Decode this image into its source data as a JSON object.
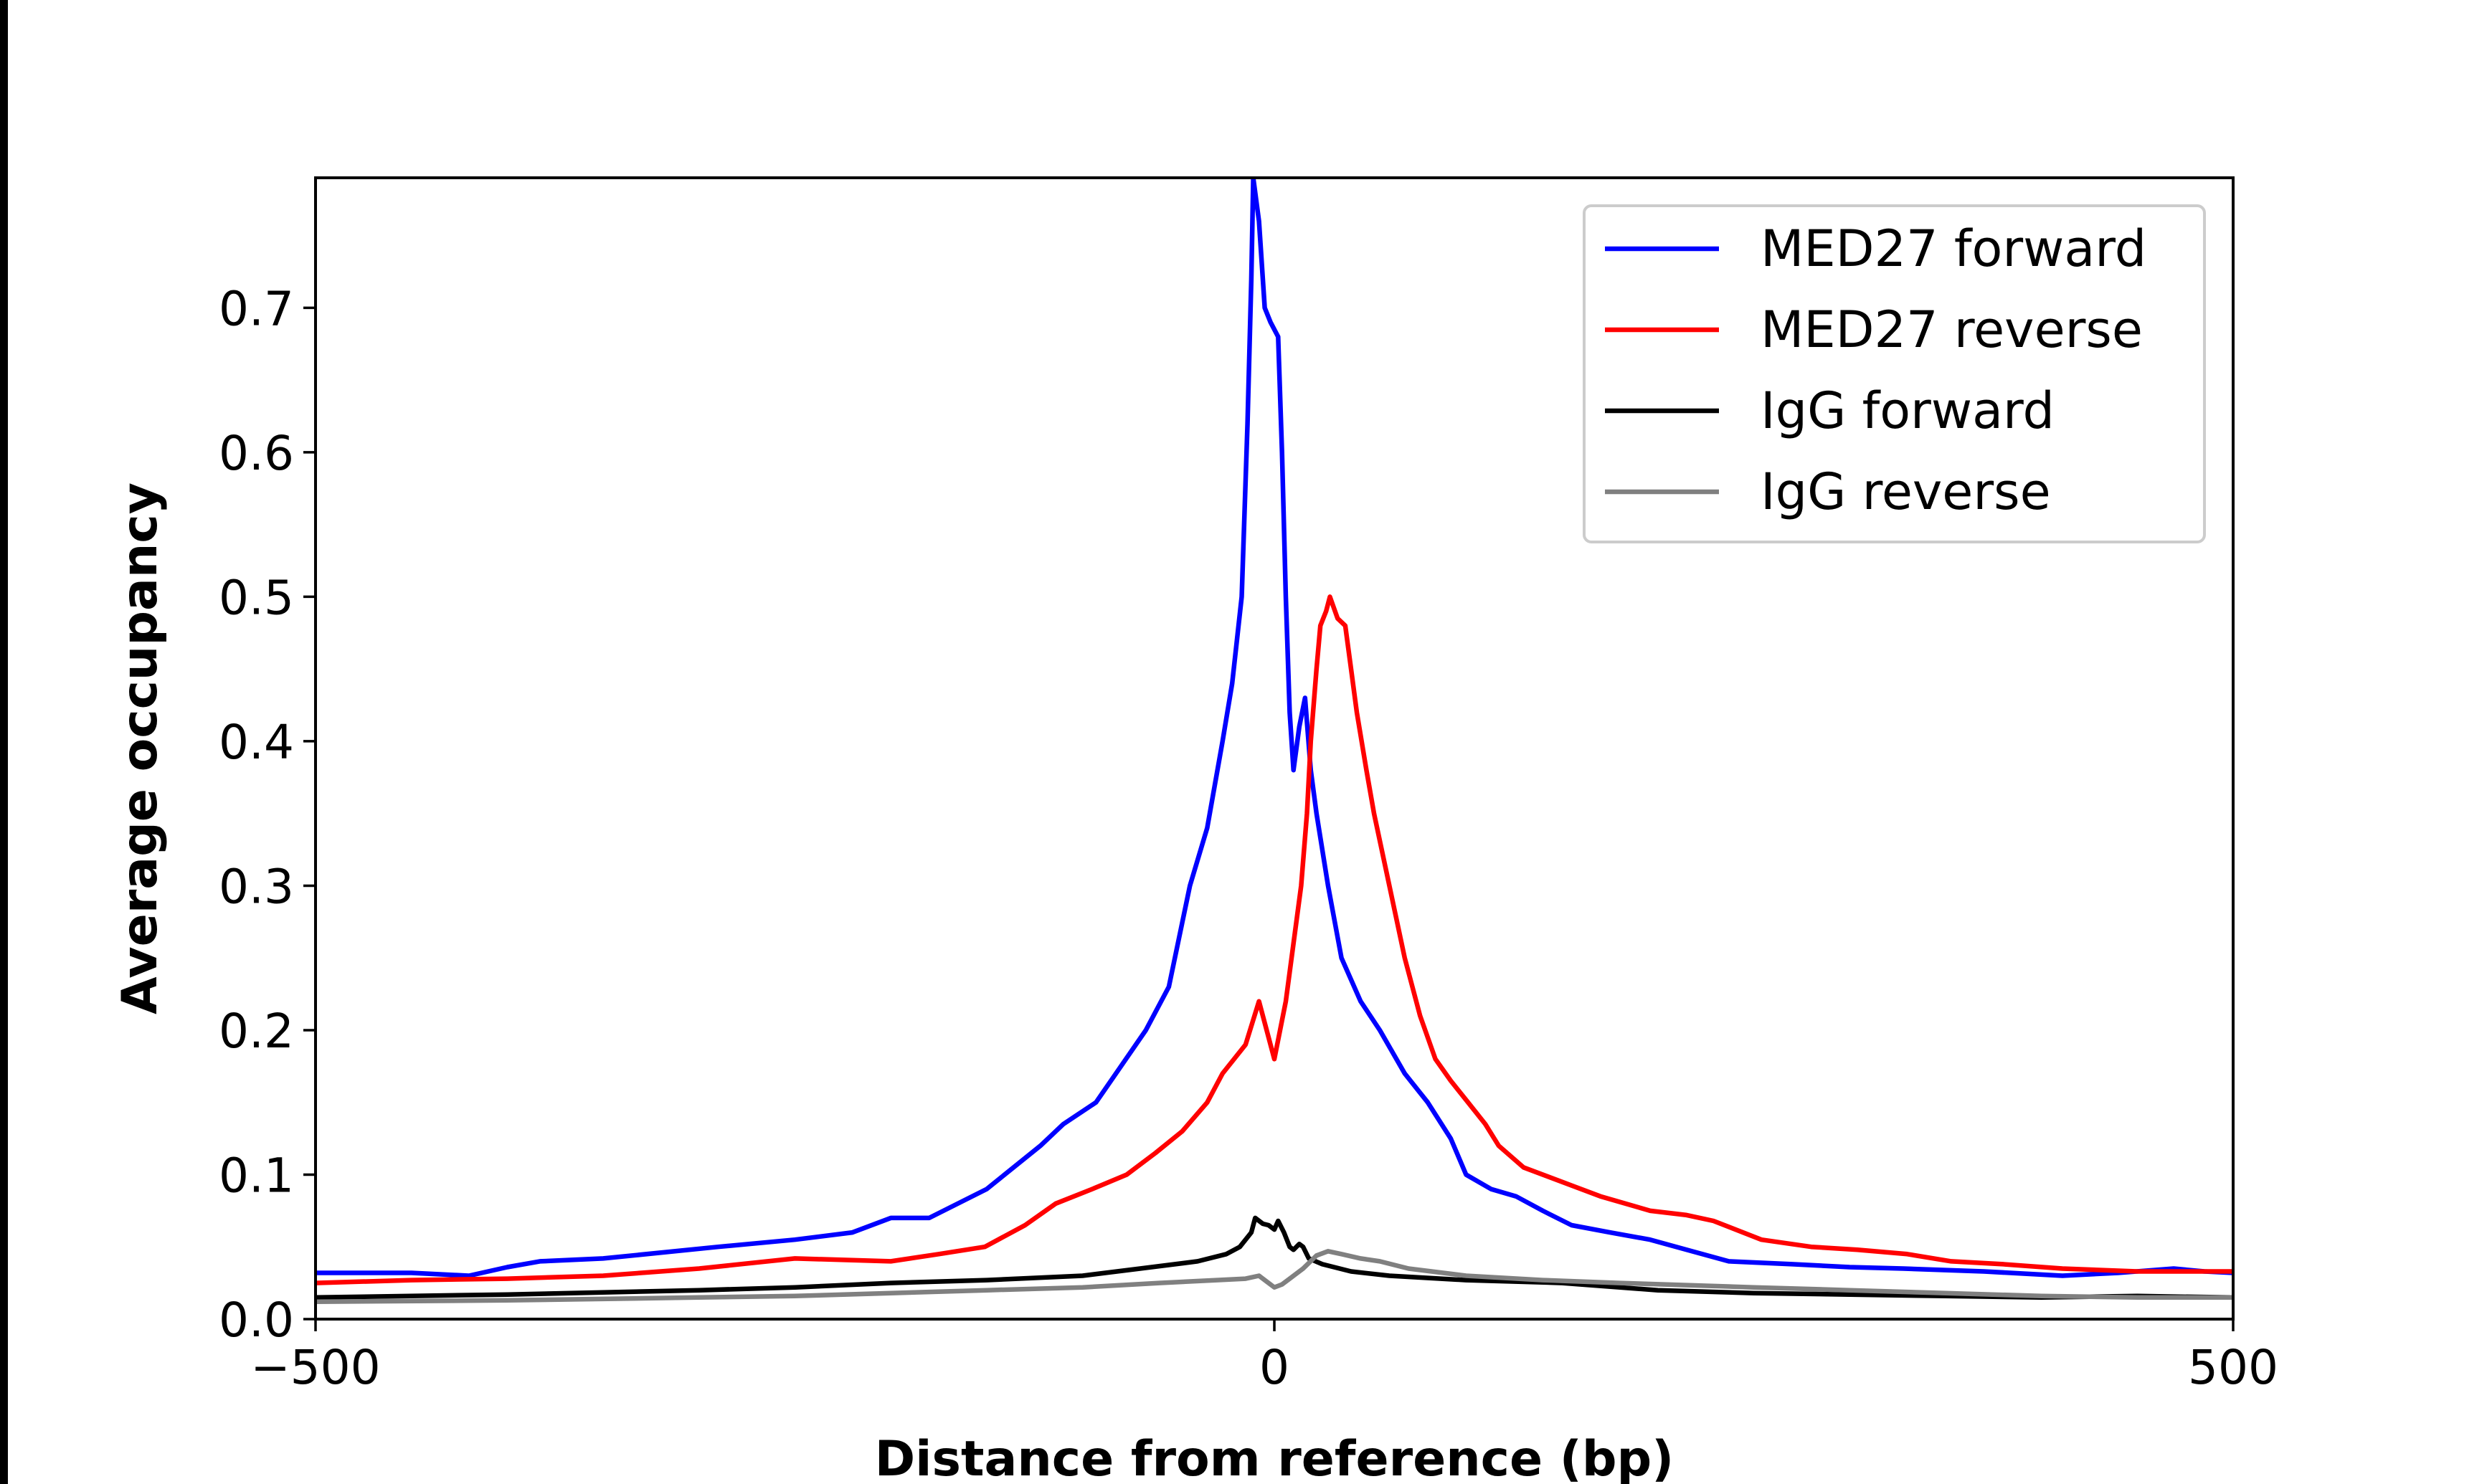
{
  "chart_data": {
    "type": "line",
    "title": "",
    "xlabel": "Distance from reference (bp)",
    "ylabel": "Average occupancy",
    "xlim": [
      -500,
      500
    ],
    "ylim": [
      0,
      0.79
    ],
    "xticks": [
      -500,
      0,
      500
    ],
    "xtick_labels": [
      "−500",
      "0",
      "500"
    ],
    "yticks": [
      0.0,
      0.1,
      0.2,
      0.3,
      0.4,
      0.5,
      0.6,
      0.7
    ],
    "ytick_labels": [
      "0.0",
      "0.1",
      "0.2",
      "0.3",
      "0.4",
      "0.5",
      "0.6",
      "0.7"
    ],
    "grid": false,
    "legend_position": "top-right",
    "series": [
      {
        "name": "MED27 forward",
        "color": "#0000ff",
        "x": [
          -500,
          -450,
          -420,
          -400,
          -383,
          -350,
          -290,
          -250,
          -220,
          -200,
          -180,
          -150,
          -122,
          -110,
          -93,
          -80,
          -67,
          -55,
          -44,
          -35,
          -27,
          -22,
          -17,
          -14,
          -12,
          -11,
          -8,
          -5,
          -2,
          2,
          4,
          6,
          8,
          10,
          13,
          16,
          19,
          22,
          28,
          35,
          45,
          55,
          68,
          80,
          92,
          100,
          113,
          126,
          140,
          155,
          175,
          196,
          215,
          237,
          270,
          300,
          328,
          370,
          411,
          440,
          469,
          485,
          500
        ],
        "y": [
          0.032,
          0.032,
          0.03,
          0.036,
          0.04,
          0.042,
          0.05,
          0.055,
          0.06,
          0.07,
          0.07,
          0.09,
          0.12,
          0.135,
          0.15,
          0.175,
          0.2,
          0.23,
          0.3,
          0.34,
          0.4,
          0.44,
          0.5,
          0.62,
          0.72,
          0.79,
          0.76,
          0.7,
          0.69,
          0.68,
          0.6,
          0.5,
          0.42,
          0.38,
          0.41,
          0.43,
          0.38,
          0.35,
          0.3,
          0.25,
          0.22,
          0.2,
          0.17,
          0.15,
          0.125,
          0.1,
          0.09,
          0.085,
          0.075,
          0.065,
          0.06,
          0.055,
          0.048,
          0.04,
          0.038,
          0.036,
          0.035,
          0.033,
          0.03,
          0.032,
          0.035,
          0.033,
          0.032
        ]
      },
      {
        "name": "MED27 reverse",
        "color": "#ff0000",
        "x": [
          -500,
          -450,
          -400,
          -350,
          -300,
          -250,
          -200,
          -175,
          -151,
          -130,
          -114,
          -95,
          -77,
          -62,
          -48,
          -35,
          -27,
          -15,
          -8,
          -4,
          0,
          3,
          6,
          10,
          14,
          17,
          19,
          22,
          24,
          27,
          29,
          33,
          37,
          40,
          43,
          48,
          52,
          60,
          68,
          76,
          84,
          92,
          101,
          110,
          117,
          130,
          150,
          170,
          196,
          215,
          229,
          254,
          280,
          304,
          330,
          353,
          380,
          411,
          450,
          500
        ],
        "y": [
          0.025,
          0.027,
          0.028,
          0.03,
          0.035,
          0.042,
          0.04,
          0.045,
          0.05,
          0.065,
          0.08,
          0.09,
          0.1,
          0.115,
          0.13,
          0.15,
          0.17,
          0.19,
          0.22,
          0.2,
          0.18,
          0.2,
          0.22,
          0.26,
          0.3,
          0.35,
          0.4,
          0.45,
          0.48,
          0.49,
          0.5,
          0.485,
          0.48,
          0.45,
          0.42,
          0.38,
          0.35,
          0.3,
          0.25,
          0.21,
          0.18,
          0.165,
          0.15,
          0.135,
          0.12,
          0.105,
          0.095,
          0.085,
          0.075,
          0.072,
          0.068,
          0.055,
          0.05,
          0.048,
          0.045,
          0.04,
          0.038,
          0.035,
          0.033,
          0.033
        ]
      },
      {
        "name": "IgG forward",
        "color": "#000000",
        "x": [
          -500,
          -400,
          -300,
          -250,
          -200,
          -150,
          -100,
          -70,
          -40,
          -25,
          -18,
          -12,
          -10,
          -6,
          -3,
          0,
          2,
          5,
          8,
          10,
          13,
          15,
          18,
          25,
          40,
          60,
          100,
          150,
          200,
          250,
          300,
          350,
          400,
          450,
          500
        ],
        "y": [
          0.015,
          0.017,
          0.02,
          0.022,
          0.025,
          0.027,
          0.03,
          0.035,
          0.04,
          0.045,
          0.05,
          0.06,
          0.07,
          0.066,
          0.065,
          0.062,
          0.068,
          0.06,
          0.05,
          0.048,
          0.052,
          0.05,
          0.042,
          0.038,
          0.033,
          0.03,
          0.027,
          0.025,
          0.02,
          0.018,
          0.017,
          0.016,
          0.015,
          0.016,
          0.015
        ]
      },
      {
        "name": "IgG reverse",
        "color": "#808080",
        "x": [
          -500,
          -400,
          -300,
          -250,
          -200,
          -150,
          -100,
          -60,
          -30,
          -15,
          -8,
          -4,
          0,
          4,
          8,
          15,
          22,
          28,
          35,
          45,
          55,
          70,
          100,
          140,
          180,
          250,
          300,
          350,
          400,
          450,
          500
        ],
        "y": [
          0.012,
          0.013,
          0.015,
          0.016,
          0.018,
          0.02,
          0.022,
          0.025,
          0.027,
          0.028,
          0.03,
          0.026,
          0.022,
          0.024,
          0.028,
          0.035,
          0.044,
          0.047,
          0.045,
          0.042,
          0.04,
          0.035,
          0.03,
          0.027,
          0.025,
          0.022,
          0.02,
          0.018,
          0.016,
          0.015,
          0.015
        ]
      }
    ]
  }
}
